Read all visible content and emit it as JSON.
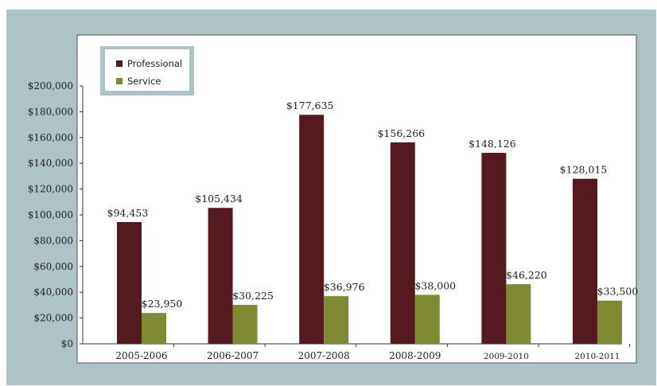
{
  "chart_data": {
    "type": "bar",
    "categories": [
      "2005-2006",
      "2006-2007",
      "2007-2008",
      "2008-2009",
      "2009-2010",
      "2010-2011"
    ],
    "series": [
      {
        "name": "Professional",
        "color": "#551a1f",
        "values": [
          94453,
          105434,
          177635,
          156266,
          148126,
          128015
        ],
        "labels": [
          "$94,453",
          "$105,434",
          "$177,635",
          "$156,266",
          "$148,126",
          "$128,015"
        ]
      },
      {
        "name": "Service",
        "color": "#7f8a33",
        "values": [
          23950,
          30225,
          36976,
          38000,
          46220,
          33500
        ],
        "labels": [
          "$23,950",
          "$30,225",
          "$36,976",
          "$38,000",
          "$46,220",
          "$33,500"
        ]
      }
    ],
    "y_ticks": [
      0,
      20000,
      40000,
      60000,
      80000,
      100000,
      120000,
      140000,
      160000,
      180000,
      200000
    ],
    "y_tick_labels": [
      "$0",
      "$20,000",
      "$40,000",
      "$60,000",
      "$80,000",
      "$100,000",
      "$120,000",
      "$140,000",
      "$160,000",
      "$180,000",
      "$200,000"
    ],
    "ylim": [
      0,
      200000
    ],
    "grid": false,
    "legend": "top-left",
    "title": "",
    "xlabel": "",
    "ylabel": ""
  }
}
